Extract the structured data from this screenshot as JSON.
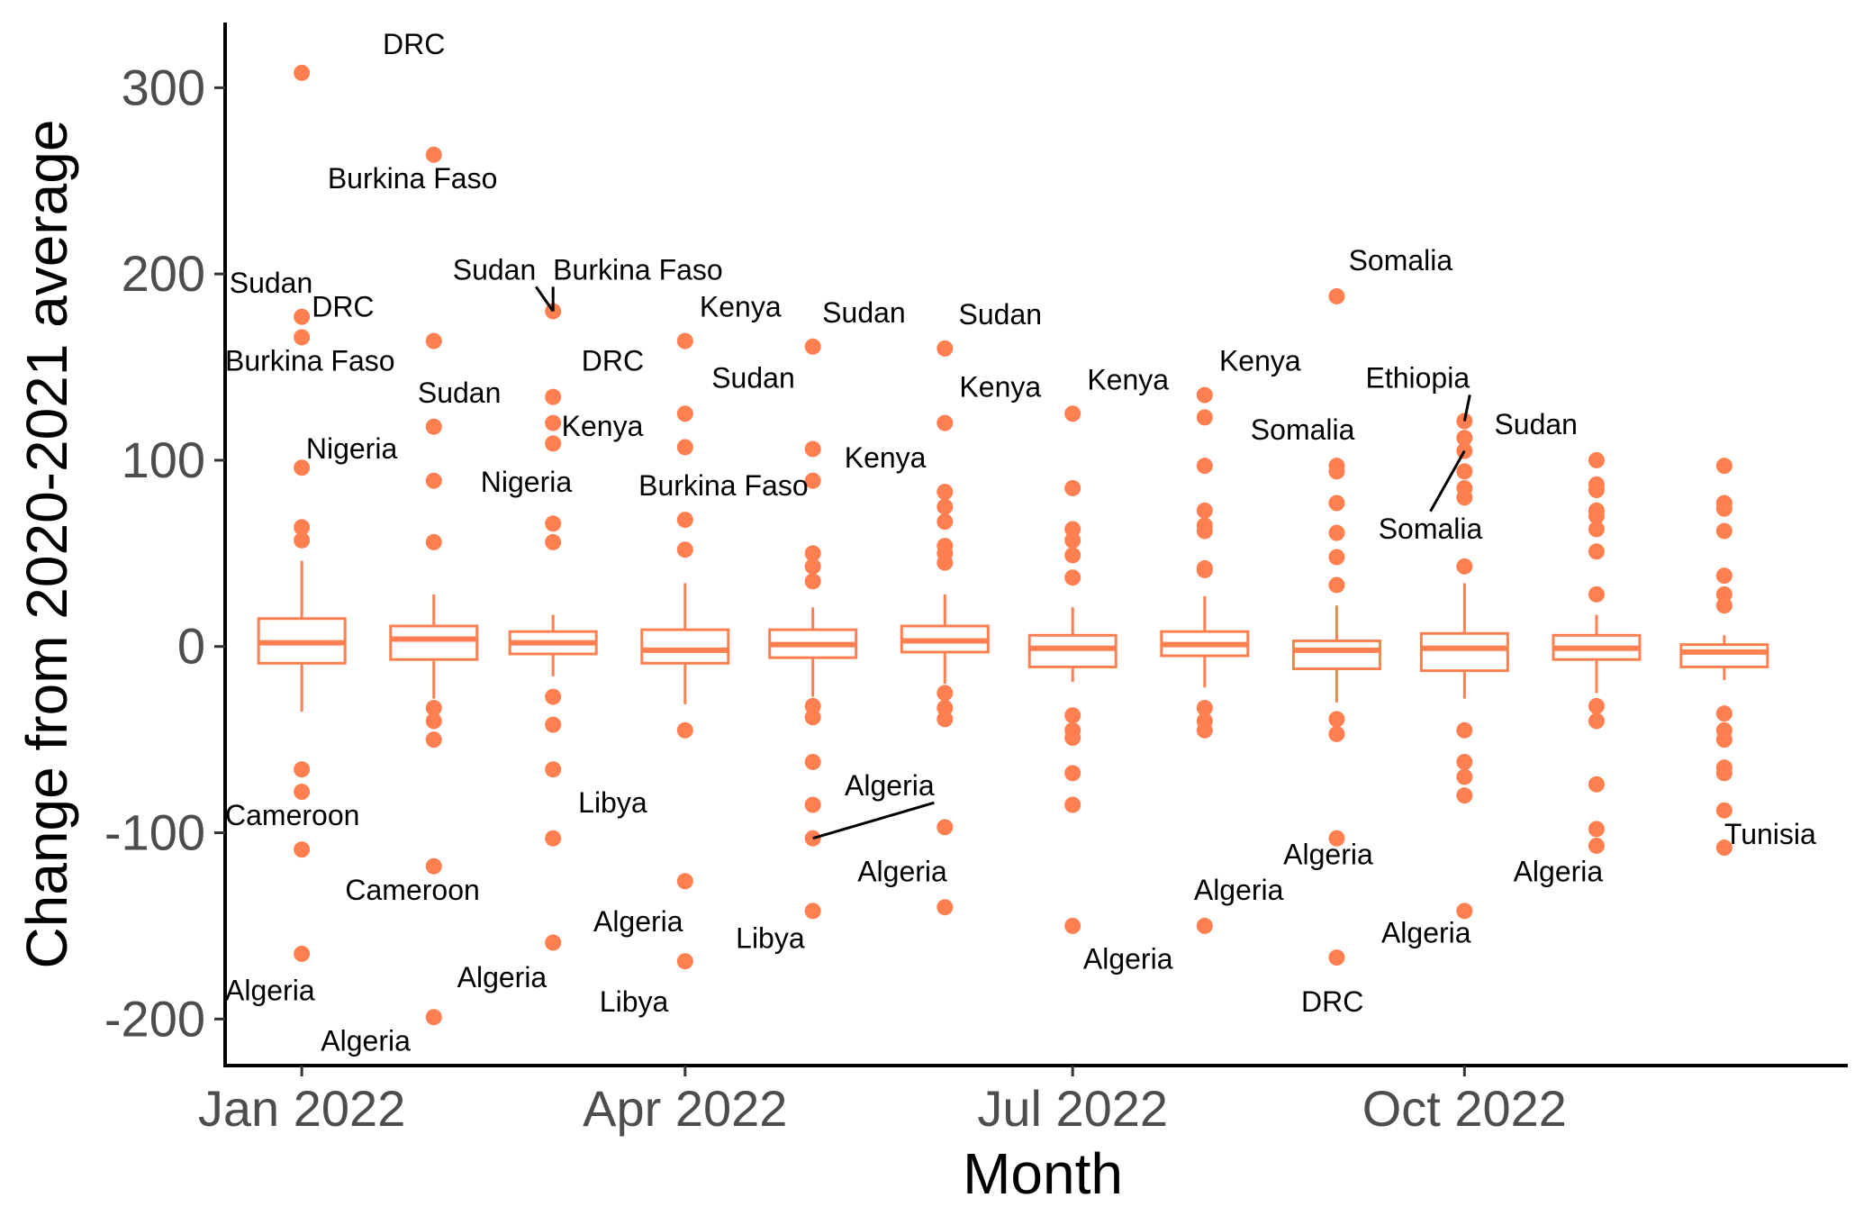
{
  "chart_data": {
    "type": "box",
    "xlabel": "Month",
    "ylabel": "Change from 2020-2021 average",
    "ylim": [
      -225,
      335
    ],
    "xlim": [
      "2021-12-14",
      "2022-12-30"
    ],
    "x_ticks": [
      {
        "date": "2022-01-01",
        "label": "Jan 2022"
      },
      {
        "date": "2022-04-01",
        "label": "Apr 2022"
      },
      {
        "date": "2022-07-01",
        "label": "Jul 2022"
      },
      {
        "date": "2022-10-01",
        "label": "Oct 2022"
      }
    ],
    "y_ticks": [
      300,
      200,
      100,
      0,
      -100,
      -200
    ],
    "color": "#FF7F50",
    "grid": false,
    "boxes": [
      {
        "month": "2022-01-01",
        "lower_whisker": -35,
        "q1": -9,
        "median": 2,
        "q3": 15,
        "upper_whisker": 46,
        "outliers": [
          308,
          177,
          166,
          96,
          64,
          57,
          -66,
          -78,
          -109,
          -165
        ]
      },
      {
        "month": "2022-02-01",
        "lower_whisker": -28,
        "q1": -7,
        "median": 4,
        "q3": 11,
        "upper_whisker": 28,
        "outliers": [
          264,
          164,
          118,
          89,
          56,
          -33,
          -40,
          -50,
          -118,
          -199
        ]
      },
      {
        "month": "2022-03-01",
        "lower_whisker": -16,
        "q1": -4,
        "median": 2,
        "q3": 8,
        "upper_whisker": 17,
        "outliers": [
          180,
          134,
          120,
          109,
          66,
          56,
          -27,
          -42,
          -66,
          -103,
          -159
        ]
      },
      {
        "month": "2022-04-01",
        "lower_whisker": -31,
        "q1": -9,
        "median": -2,
        "q3": 9,
        "upper_whisker": 34,
        "outliers": [
          164,
          125,
          107,
          68,
          52,
          -45,
          -126,
          -169
        ]
      },
      {
        "month": "2022-05-01",
        "lower_whisker": -27,
        "q1": -6,
        "median": 1,
        "q3": 9,
        "upper_whisker": 21,
        "outliers": [
          161,
          106,
          89,
          50,
          43,
          35,
          -32,
          -38,
          -62,
          -85,
          -103,
          -142
        ]
      },
      {
        "month": "2022-06-01",
        "lower_whisker": -20,
        "q1": -3,
        "median": 3,
        "q3": 11,
        "upper_whisker": 28,
        "outliers": [
          160,
          120,
          83,
          75,
          67,
          54,
          50,
          45,
          -25,
          -33,
          -39,
          -97,
          -140
        ]
      },
      {
        "month": "2022-07-01",
        "lower_whisker": -19,
        "q1": -11,
        "median": -1,
        "q3": 6,
        "upper_whisker": 21,
        "outliers": [
          125,
          85,
          63,
          57,
          49,
          37,
          -37,
          -45,
          -49,
          -68,
          -85,
          -150
        ]
      },
      {
        "month": "2022-08-01",
        "lower_whisker": -22,
        "q1": -5,
        "median": 1,
        "q3": 8,
        "upper_whisker": 27,
        "outliers": [
          135,
          123,
          97,
          73,
          65,
          62,
          42,
          41,
          -33,
          -40,
          -45,
          -150
        ]
      },
      {
        "month": "2022-09-01",
        "lower_whisker": -30,
        "q1": -12,
        "median": -2,
        "q3": 3,
        "upper_whisker": 22,
        "outliers": [
          188,
          97,
          94,
          77,
          61,
          48,
          33,
          -39,
          -47,
          -103,
          -167
        ]
      },
      {
        "month": "2022-10-01",
        "lower_whisker": -28,
        "q1": -13,
        "median": -1,
        "q3": 7,
        "upper_whisker": 34,
        "outliers": [
          121,
          112,
          105,
          94,
          85,
          80,
          43,
          -45,
          -62,
          -70,
          -80,
          -142
        ]
      },
      {
        "month": "2022-11-01",
        "lower_whisker": -25,
        "q1": -7,
        "median": -1,
        "q3": 6,
        "upper_whisker": 17,
        "outliers": [
          100,
          87,
          84,
          73,
          70,
          63,
          51,
          28,
          -32,
          -40,
          -74,
          -98,
          -107
        ]
      },
      {
        "month": "2022-12-01",
        "lower_whisker": -18,
        "q1": -11,
        "median": -3,
        "q3": 1,
        "upper_whisker": 6,
        "outliers": [
          97,
          77,
          74,
          62,
          38,
          28,
          22,
          -36,
          -45,
          -50,
          -65,
          -68,
          -88,
          -108
        ]
      }
    ],
    "annotations": [
      {
        "text": "DRC",
        "point": [
          "2022-01-01",
          308
        ],
        "label_at": [
          "2022-01-20",
          318
        ],
        "anchor": "start",
        "leader": false
      },
      {
        "text": "Sudan",
        "point": [
          "2022-01-01",
          177
        ],
        "label_at": [
          "2021-12-15",
          190
        ],
        "anchor": "start",
        "leader": false
      },
      {
        "text": "Burkina Faso",
        "point": [
          "2022-01-01",
          166
        ],
        "label_at": [
          "2021-12-14",
          148
        ],
        "anchor": "start",
        "leader": false
      },
      {
        "text": "Nigeria",
        "point": [
          "2022-01-01",
          96
        ],
        "label_at": [
          "2022-01-02",
          101
        ],
        "anchor": "start",
        "leader": false
      },
      {
        "text": "Cameroon",
        "point": [
          "2022-01-01",
          -109
        ],
        "label_at": [
          "2021-12-14",
          -96
        ],
        "anchor": "start",
        "leader": false
      },
      {
        "text": "Algeria",
        "point": [
          "2022-01-01",
          -165
        ],
        "label_at": [
          "2021-12-14",
          -190
        ],
        "anchor": "start",
        "leader": false
      },
      {
        "text": "Burkina Faso",
        "point": [
          "2022-02-01",
          264
        ],
        "label_at": [
          "2022-01-27",
          246
        ],
        "anchor": "middle",
        "leader": false
      },
      {
        "text": "DRC",
        "point": [
          "2022-02-01",
          164
        ],
        "label_at": [
          "2022-01-18",
          177
        ],
        "anchor": "end",
        "leader": false
      },
      {
        "text": "Sudan",
        "point": [
          "2022-02-01",
          118
        ],
        "label_at": [
          "2022-02-07",
          131
        ],
        "anchor": "middle",
        "leader": false
      },
      {
        "text": "Nigeria",
        "point": [
          "2022-02-01",
          89
        ],
        "label_at": [
          "2022-02-12",
          83
        ],
        "anchor": "start",
        "leader": false
      },
      {
        "text": "Cameroon",
        "point": [
          "2022-02-01",
          -118
        ],
        "label_at": [
          "2022-01-27",
          -136
        ],
        "anchor": "middle",
        "leader": false
      },
      {
        "text": "Algeria",
        "point": [
          "2022-02-01",
          -199
        ],
        "label_at": [
          "2022-01-16",
          -217
        ],
        "anchor": "middle",
        "leader": false
      },
      {
        "text": "Sudan",
        "point": [
          "2022-03-01",
          180
        ],
        "label_at": [
          "2022-02-25",
          197
        ],
        "anchor": "end",
        "leader": true
      },
      {
        "text": "Burkina Faso",
        "point": [
          "2022-03-01",
          180
        ],
        "label_at": [
          "2022-03-01",
          197
        ],
        "anchor": "start",
        "leader": true
      },
      {
        "text": "DRC",
        "point": [
          "2022-03-01",
          134
        ],
        "label_at": [
          "2022-03-15",
          148
        ],
        "anchor": "middle",
        "leader": false
      },
      {
        "text": "Kenya",
        "point": [
          "2022-03-01",
          109
        ],
        "label_at": [
          "2022-03-03",
          113
        ],
        "anchor": "start",
        "leader": false
      },
      {
        "text": "Libya",
        "point": [
          "2022-03-01",
          -103
        ],
        "label_at": [
          "2022-03-15",
          -89
        ],
        "anchor": "middle",
        "leader": false
      },
      {
        "text": "Algeria",
        "point": [
          "2022-03-01",
          -159
        ],
        "label_at": [
          "2022-02-17",
          -183
        ],
        "anchor": "middle",
        "leader": false
      },
      {
        "text": "Kenya",
        "point": [
          "2022-04-01",
          164
        ],
        "label_at": [
          "2022-04-14",
          177
        ],
        "anchor": "middle",
        "leader": false
      },
      {
        "text": "Sudan",
        "point": [
          "2022-04-01",
          125
        ],
        "label_at": [
          "2022-04-17",
          139
        ],
        "anchor": "middle",
        "leader": false
      },
      {
        "text": "Burkina Faso",
        "point": [
          "2022-04-01",
          68
        ],
        "label_at": [
          "2022-04-10",
          81
        ],
        "anchor": "middle",
        "leader": false
      },
      {
        "text": "Algeria",
        "point": [
          "2022-04-01",
          -126
        ],
        "label_at": [
          "2022-03-21",
          -153
        ],
        "anchor": "middle",
        "leader": false
      },
      {
        "text": "Libya",
        "point": [
          "2022-04-01",
          -169
        ],
        "label_at": [
          "2022-03-20",
          -196
        ],
        "anchor": "middle",
        "leader": false
      },
      {
        "text": "Sudan",
        "point": [
          "2022-05-01",
          161
        ],
        "label_at": [
          "2022-05-13",
          174
        ],
        "anchor": "middle",
        "leader": false
      },
      {
        "text": "Kenya",
        "point": [
          "2022-05-01",
          106
        ],
        "label_at": [
          "2022-05-18",
          96
        ],
        "anchor": "middle",
        "leader": false
      },
      {
        "text": "Algeria",
        "point": [
          "2022-05-01",
          -103
        ],
        "label_at": [
          "2022-05-19",
          -80
        ],
        "anchor": "middle",
        "leader": true
      },
      {
        "text": "Libya",
        "point": [
          "2022-05-01",
          -142
        ],
        "label_at": [
          "2022-04-21",
          -162
        ],
        "anchor": "middle",
        "leader": false
      },
      {
        "text": "Sudan",
        "point": [
          "2022-06-01",
          160
        ],
        "label_at": [
          "2022-06-14",
          173
        ],
        "anchor": "middle",
        "leader": false
      },
      {
        "text": "Kenya",
        "point": [
          "2022-06-01",
          120
        ],
        "label_at": [
          "2022-06-14",
          134
        ],
        "anchor": "middle",
        "leader": false
      },
      {
        "text": "Algeria",
        "point": [
          "2022-06-01",
          -140
        ],
        "label_at": [
          "2022-05-22",
          -126
        ],
        "anchor": "middle",
        "leader": false
      },
      {
        "text": "Kenya",
        "point": [
          "2022-07-01",
          125
        ],
        "label_at": [
          "2022-07-14",
          138
        ],
        "anchor": "middle",
        "leader": false
      },
      {
        "text": "Algeria",
        "point": [
          "2022-07-01",
          -150
        ],
        "label_at": [
          "2022-07-14",
          -173
        ],
        "anchor": "middle",
        "leader": false
      },
      {
        "text": "Kenya",
        "point": [
          "2022-08-01",
          135
        ],
        "label_at": [
          "2022-08-14",
          148
        ],
        "anchor": "middle",
        "leader": false
      },
      {
        "text": "Somalia",
        "point": [
          "2022-08-01",
          97
        ],
        "label_at": [
          "2022-08-24",
          111
        ],
        "anchor": "middle",
        "leader": false
      },
      {
        "text": "Algeria",
        "point": [
          "2022-08-01",
          -150
        ],
        "label_at": [
          "2022-08-09",
          -136
        ],
        "anchor": "middle",
        "leader": false
      },
      {
        "text": "Somalia",
        "point": [
          "2022-09-01",
          188
        ],
        "label_at": [
          "2022-09-16",
          202
        ],
        "anchor": "middle",
        "leader": false
      },
      {
        "text": "Algeria",
        "point": [
          "2022-09-01",
          -103
        ],
        "label_at": [
          "2022-08-30",
          -117
        ],
        "anchor": "middle",
        "leader": false
      },
      {
        "text": "DRC",
        "point": [
          "2022-09-01",
          -167
        ],
        "label_at": [
          "2022-08-31",
          -196
        ],
        "anchor": "middle",
        "leader": false
      },
      {
        "text": "Ethiopia",
        "point": [
          "2022-10-01",
          121
        ],
        "label_at": [
          "2022-09-20",
          139
        ],
        "anchor": "middle",
        "leader": true
      },
      {
        "text": "Sudan",
        "point": [
          "2022-10-01",
          112
        ],
        "label_at": [
          "2022-10-08",
          114
        ],
        "anchor": "start",
        "leader": false
      },
      {
        "text": "Somalia",
        "point": [
          "2022-10-01",
          105
        ],
        "label_at": [
          "2022-09-23",
          58
        ],
        "anchor": "middle",
        "leader": true
      },
      {
        "text": "Algeria",
        "point": [
          "2022-10-01",
          -142
        ],
        "label_at": [
          "2022-09-22",
          -159
        ],
        "anchor": "middle",
        "leader": false
      },
      {
        "text": "Algeria",
        "point": [
          "2022-11-01",
          -107
        ],
        "label_at": [
          "2022-10-23",
          -126
        ],
        "anchor": "middle",
        "leader": false
      },
      {
        "text": "Tunisia",
        "point": [
          "2022-12-01",
          -108
        ],
        "label_at": [
          "2022-12-01",
          -106
        ],
        "anchor": "start",
        "leader": false
      }
    ]
  }
}
